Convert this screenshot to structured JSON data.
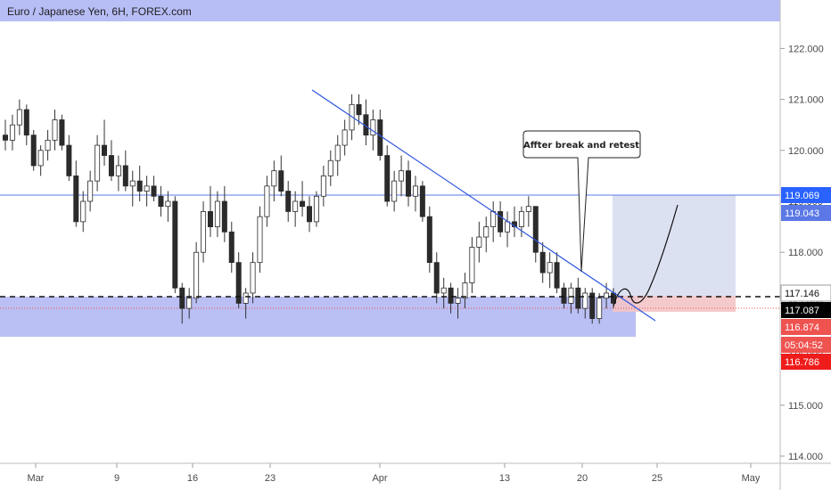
{
  "chart_data": {
    "type": "candlestick",
    "title": "Euro / Japanese Yen, 6H, FOREX.com",
    "xlabel": "",
    "ylabel": "",
    "ylim": [
      113.8,
      122.5
    ],
    "grid": false,
    "x_tick_labels": [
      "Mar",
      "9",
      "16",
      "23",
      "Apr",
      "13",
      "20",
      "25",
      "May"
    ],
    "y_tick_labels": [
      "114.000",
      "115.000",
      "116.000",
      "117.000",
      "118.000",
      "119.000",
      "120.000",
      "121.000",
      "122.000"
    ],
    "y_ticks": [
      114,
      115,
      116,
      117,
      118,
      119,
      120,
      121,
      122
    ],
    "price_badges": [
      {
        "label": "119.069",
        "value": 119.069,
        "color": "#2962ff"
      },
      {
        "label": "119.043",
        "value": 119.043,
        "color": "#5b78e6"
      },
      {
        "label": "117.146",
        "value": 117.146,
        "color": "#ffffff"
      },
      {
        "label": "117.087",
        "value": 117.087,
        "color": "#000000"
      },
      {
        "label": "116.874",
        "value": 116.874,
        "color": "#ef5350"
      },
      {
        "label": "05:04:52",
        "value": 116.5,
        "color": "#ef5350"
      },
      {
        "label": "116.786",
        "value": 116.786,
        "color": "#ef1c1c"
      }
    ],
    "annotation": {
      "text": "Affter break and retest"
    },
    "candles_approx": [
      [
        120.3,
        120.6,
        120.0,
        120.2
      ],
      [
        120.2,
        120.7,
        120.0,
        120.5
      ],
      [
        120.5,
        121.0,
        120.3,
        120.8
      ],
      [
        120.8,
        120.9,
        120.1,
        120.3
      ],
      [
        120.3,
        120.4,
        119.6,
        119.7
      ],
      [
        119.7,
        120.1,
        119.5,
        120.0
      ],
      [
        120.0,
        120.4,
        119.8,
        120.2
      ],
      [
        120.2,
        120.8,
        120.0,
        120.6
      ],
      [
        120.6,
        120.7,
        120.0,
        120.1
      ],
      [
        120.1,
        120.3,
        119.4,
        119.5
      ],
      [
        119.5,
        119.8,
        118.5,
        118.6
      ],
      [
        118.6,
        119.2,
        118.4,
        119.0
      ],
      [
        119.0,
        119.6,
        118.8,
        119.4
      ],
      [
        119.4,
        120.3,
        119.2,
        120.1
      ],
      [
        120.1,
        120.6,
        119.7,
        119.9
      ],
      [
        119.9,
        120.2,
        119.4,
        119.5
      ],
      [
        119.5,
        119.9,
        119.2,
        119.7
      ],
      [
        119.7,
        120.0,
        119.2,
        119.3
      ],
      [
        119.3,
        119.6,
        118.9,
        119.4
      ],
      [
        119.4,
        119.7,
        119.0,
        119.2
      ],
      [
        119.2,
        119.5,
        118.9,
        119.3
      ],
      [
        119.3,
        119.5,
        119.0,
        119.1
      ],
      [
        119.1,
        119.3,
        118.7,
        118.9
      ],
      [
        118.9,
        119.2,
        118.6,
        119.0
      ],
      [
        119.0,
        119.1,
        117.2,
        117.3
      ],
      [
        117.3,
        117.4,
        116.6,
        116.9
      ],
      [
        116.9,
        117.3,
        116.7,
        117.1
      ],
      [
        117.1,
        118.2,
        117.0,
        118.0
      ],
      [
        118.0,
        119.0,
        117.8,
        118.8
      ],
      [
        118.8,
        119.3,
        118.3,
        118.5
      ],
      [
        118.5,
        119.2,
        118.3,
        119.0
      ],
      [
        119.0,
        119.3,
        118.2,
        118.4
      ],
      [
        118.4,
        118.6,
        117.6,
        117.8
      ],
      [
        117.8,
        118.0,
        116.9,
        117.0
      ],
      [
        117.0,
        117.3,
        116.7,
        117.2
      ],
      [
        117.2,
        118.0,
        117.0,
        117.8
      ],
      [
        117.8,
        118.9,
        117.6,
        118.7
      ],
      [
        118.7,
        119.5,
        118.5,
        119.3
      ],
      [
        119.3,
        119.8,
        119.0,
        119.6
      ],
      [
        119.6,
        119.9,
        119.1,
        119.2
      ],
      [
        119.2,
        119.4,
        118.6,
        118.8
      ],
      [
        118.8,
        119.2,
        118.5,
        119.0
      ],
      [
        119.0,
        119.4,
        118.7,
        118.9
      ],
      [
        118.9,
        119.1,
        118.4,
        118.6
      ],
      [
        118.6,
        119.2,
        118.5,
        119.1
      ],
      [
        119.1,
        119.7,
        118.9,
        119.5
      ],
      [
        119.5,
        120.0,
        119.3,
        119.8
      ],
      [
        119.8,
        120.3,
        119.5,
        120.1
      ],
      [
        120.1,
        120.6,
        119.9,
        120.4
      ],
      [
        120.4,
        121.1,
        120.2,
        120.9
      ],
      [
        120.9,
        121.1,
        120.5,
        120.7
      ],
      [
        120.7,
        121.0,
        120.1,
        120.3
      ],
      [
        120.3,
        120.8,
        120.0,
        120.6
      ],
      [
        120.6,
        120.8,
        119.8,
        119.9
      ],
      [
        119.9,
        120.1,
        118.9,
        119.0
      ],
      [
        119.0,
        119.6,
        118.8,
        119.4
      ],
      [
        119.4,
        119.9,
        119.1,
        119.6
      ],
      [
        119.6,
        119.8,
        118.9,
        119.1
      ],
      [
        119.1,
        119.5,
        118.8,
        119.3
      ],
      [
        119.3,
        119.4,
        118.6,
        118.7
      ],
      [
        118.7,
        118.9,
        117.6,
        117.8
      ],
      [
        117.8,
        118.0,
        117.0,
        117.2
      ],
      [
        117.2,
        117.5,
        116.9,
        117.3
      ],
      [
        117.3,
        117.4,
        116.8,
        117.0
      ],
      [
        117.0,
        117.3,
        116.7,
        117.1
      ],
      [
        117.1,
        117.6,
        116.9,
        117.4
      ],
      [
        117.4,
        118.3,
        117.2,
        118.1
      ],
      [
        118.1,
        118.6,
        117.8,
        118.3
      ],
      [
        118.3,
        118.7,
        118.0,
        118.5
      ],
      [
        118.5,
        119.0,
        118.2,
        118.8
      ],
      [
        118.8,
        119.0,
        118.3,
        118.4
      ],
      [
        118.4,
        118.8,
        118.1,
        118.6
      ],
      [
        118.6,
        118.9,
        118.3,
        118.5
      ],
      [
        118.5,
        118.9,
        118.3,
        118.8
      ],
      [
        118.8,
        119.1,
        118.5,
        118.9
      ],
      [
        118.9,
        118.9,
        117.8,
        118.0
      ],
      [
        118.0,
        118.2,
        117.4,
        117.6
      ],
      [
        117.6,
        118.0,
        117.3,
        117.8
      ],
      [
        117.8,
        118.0,
        117.2,
        117.3
      ],
      [
        117.3,
        117.4,
        116.9,
        117.0
      ],
      [
        117.0,
        117.4,
        116.8,
        117.3
      ],
      [
        117.3,
        117.5,
        116.8,
        116.9
      ],
      [
        116.9,
        117.3,
        116.7,
        117.2
      ],
      [
        117.2,
        117.3,
        116.6,
        116.7
      ],
      [
        116.7,
        117.2,
        116.6,
        117.1
      ],
      [
        117.1,
        117.4,
        116.9,
        117.2
      ],
      [
        117.2,
        117.3,
        116.9,
        117.0
      ]
    ]
  }
}
